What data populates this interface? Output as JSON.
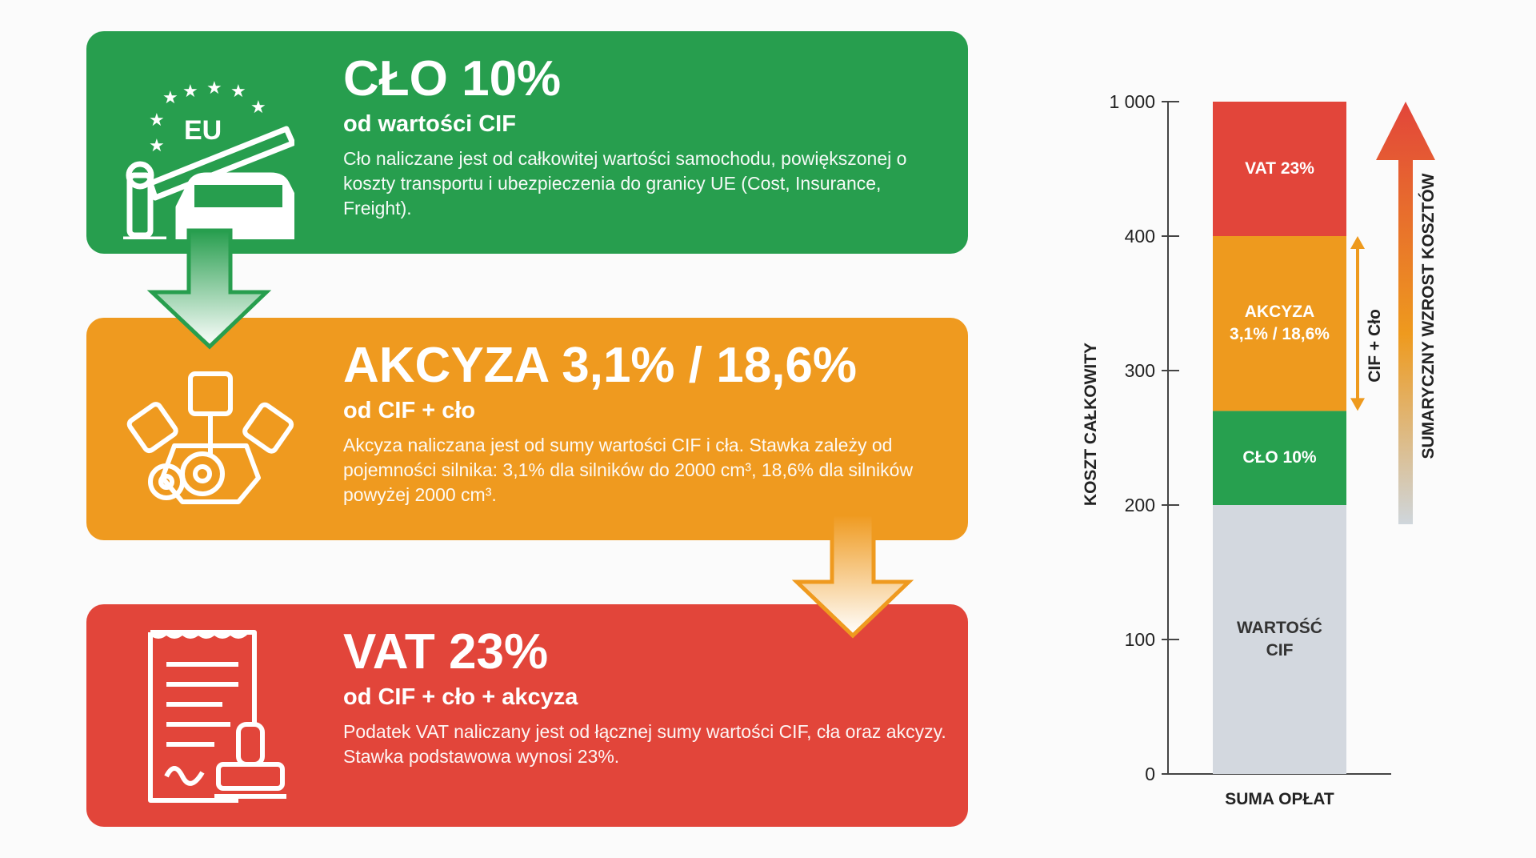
{
  "cards": [
    {
      "title": "CŁO 10%",
      "subtitle": "od wartości CIF",
      "description": "Cło naliczane jest od całkowitej wartości samochodu, powiększonej o koszty transportu i ubezpieczenia do granicy UE (Cost, Insurance, Freight).",
      "icon_text": "EU"
    },
    {
      "title": "AKCYZA 3,1% / 18,6%",
      "subtitle": "od CIF + cło",
      "description": "Akcyza naliczana jest od sumy wartości CIF i cła. Stawka zależy od pojemności silnika: 3,1% dla silników do 2000 cm³, 18,6% dla silników powyżej 2000 cm³."
    },
    {
      "title": "VAT 23%",
      "subtitle": "od CIF + cło + akcyza",
      "description": "Podatek VAT naliczany jest od łącznej sumy wartości CIF, cła oraz akcyzy. Stawka podstawowa wynosi 23%."
    }
  ],
  "chart_data": {
    "type": "stacked_bar",
    "y_label": "KOSZT CAŁKOWITY",
    "categories": [
      "SUMA OPŁAT"
    ],
    "series": [
      {
        "name": "WARTOŚĆ\nCIF",
        "color": "#d3d8df",
        "values": [
          200
        ]
      },
      {
        "name": "CŁO 10%",
        "color": "#27a04f",
        "values": [
          70
        ]
      },
      {
        "name": "AKCYZA\n3,1% / 18,6%",
        "color": "#ee9a1e",
        "values": [
          130
        ]
      },
      {
        "name": "VAT 23%",
        "color": "#e2453a",
        "values": [
          600
        ]
      }
    ],
    "ylim": [
      0,
      1000
    ],
    "yticks": [
      0,
      100,
      200,
      300,
      400,
      {
        "value": 1000,
        "label": "1 000"
      }
    ],
    "annotations": [
      "CIF + Cło",
      "SUMARYCZNY WZROST KOSZTÓW"
    ]
  }
}
